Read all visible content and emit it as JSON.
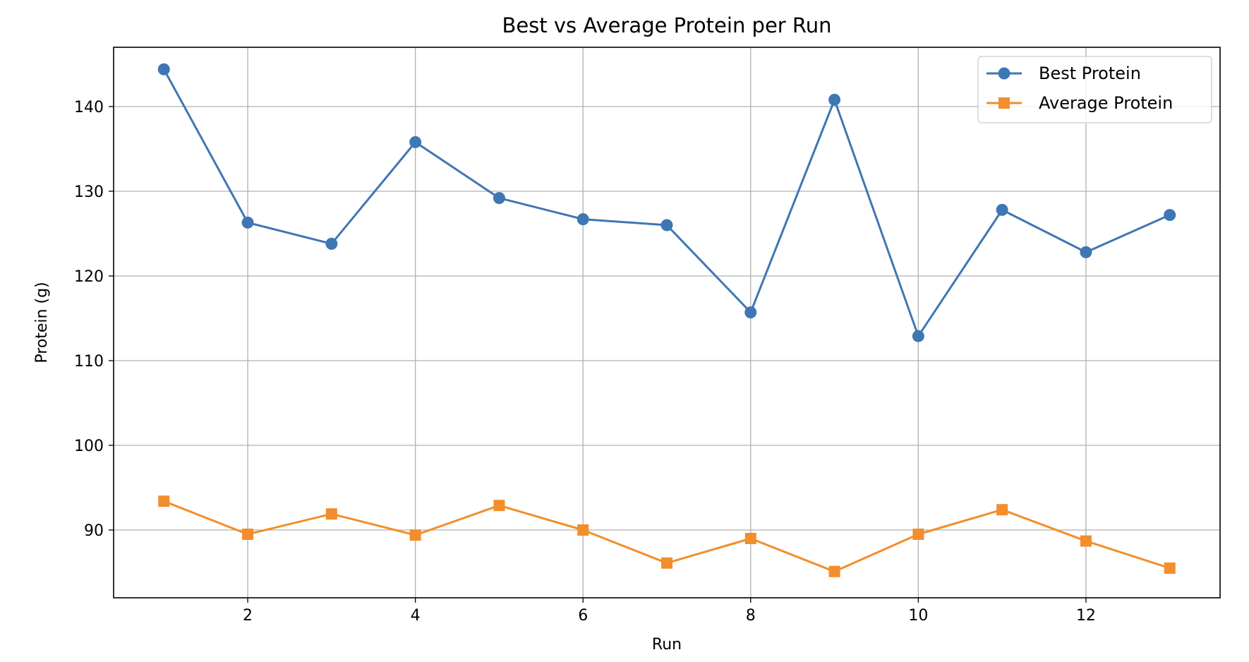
{
  "chart_data": {
    "type": "line",
    "title": "Best vs Average Protein per Run",
    "xlabel": "Run",
    "ylabel": "Protein (g)",
    "xlim": [
      0.4,
      13.6
    ],
    "ylim": [
      82.0,
      147.0
    ],
    "xticks": [
      2,
      4,
      6,
      8,
      10,
      12
    ],
    "yticks": [
      90,
      100,
      110,
      120,
      130,
      140
    ],
    "grid": true,
    "legend_position": "top-right",
    "x": [
      1,
      2,
      3,
      4,
      5,
      6,
      7,
      8,
      9,
      10,
      11,
      12,
      13
    ],
    "series": [
      {
        "name": "Best Protein",
        "color": "#3f76b4",
        "marker": "circle",
        "values": [
          144.4,
          126.3,
          123.8,
          135.8,
          129.2,
          126.7,
          126.0,
          115.7,
          140.8,
          112.9,
          127.8,
          122.8,
          127.2
        ]
      },
      {
        "name": "Average Protein",
        "color": "#f28e2b",
        "marker": "square",
        "values": [
          93.4,
          89.5,
          91.9,
          89.4,
          92.9,
          90.0,
          86.1,
          89.0,
          85.1,
          89.5,
          92.4,
          88.7,
          85.5
        ]
      }
    ]
  }
}
